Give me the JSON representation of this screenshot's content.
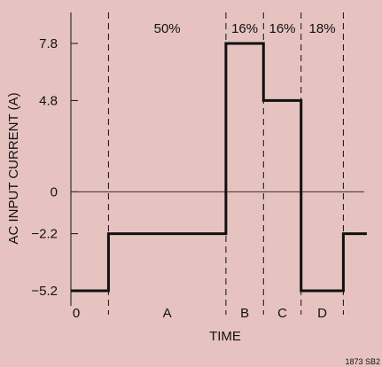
{
  "chart_data": {
    "type": "line",
    "title": "",
    "ylabel": "AC INPUT CURRENT (A)",
    "xlabel": "TIME",
    "yticks": [
      7.8,
      4.8,
      0,
      -2.2,
      -5.2
    ],
    "ytick_labels": [
      "7.8",
      "4.8",
      "0",
      "−2.2",
      "−5.2"
    ],
    "ylim": [
      -5.2,
      7.8
    ],
    "xlim": [
      0,
      100
    ],
    "period_boundaries": [
      0,
      16,
      66,
      82,
      100
    ],
    "segments": [
      {
        "label": "0",
        "x_start": 0,
        "x_end": 16,
        "value": -5.2
      },
      {
        "label": "A",
        "x_start": 16,
        "x_end": 66,
        "value": -2.2,
        "percent": "50%"
      },
      {
        "label": "B",
        "x_start": 66,
        "x_end": 82,
        "value": 7.8,
        "percent": "16%"
      },
      {
        "label": "C",
        "x_start": 82,
        "x_end": 98,
        "value": 4.8,
        "percent": "16%"
      },
      {
        "label": "D",
        "x_start": 98,
        "x_end": 116,
        "value": -5.2,
        "percent": "18%"
      },
      {
        "label": "",
        "x_start": 116,
        "x_end": 126,
        "value": -2.2
      }
    ],
    "zero_line": true,
    "grid": false
  },
  "footer": {
    "note": "1873 SB2"
  }
}
